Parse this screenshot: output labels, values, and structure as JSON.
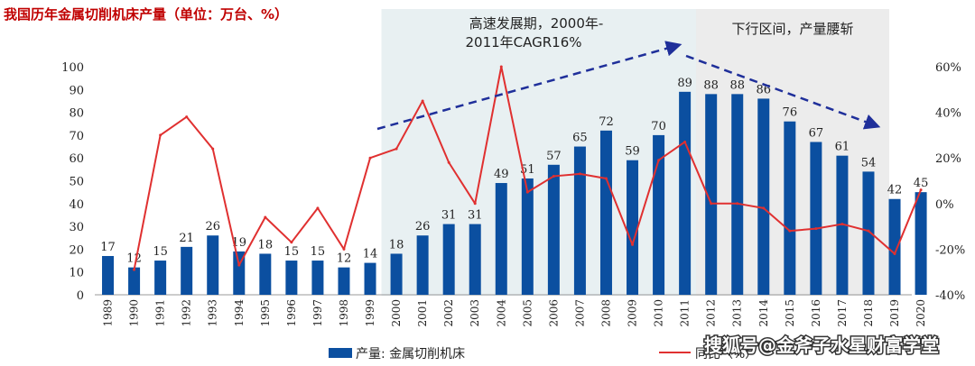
{
  "chart_data": {
    "type": "bar",
    "title": "我国历年金属切削机床产量（单位：万台、%）",
    "categories": [
      "1989",
      "1990",
      "1991",
      "1992",
      "1993",
      "1994",
      "1995",
      "1996",
      "1997",
      "1998",
      "1999",
      "2000",
      "2001",
      "2002",
      "2003",
      "2004",
      "2005",
      "2006",
      "2007",
      "2008",
      "2009",
      "2010",
      "2011",
      "2012",
      "2013",
      "2014",
      "2015",
      "2016",
      "2017",
      "2018",
      "2019",
      "2020"
    ],
    "series": [
      {
        "name": "产量: 金属切削机床",
        "axis": "left",
        "color": "#0b4fa0",
        "values": [
          17,
          12,
          15,
          21,
          26,
          19,
          18,
          15,
          15,
          12,
          14,
          18,
          26,
          31,
          31,
          49,
          51,
          57,
          65,
          72,
          59,
          70,
          89,
          88,
          88,
          86,
          76,
          67,
          61,
          54,
          42,
          45
        ]
      },
      {
        "name": "同比（%）",
        "axis": "right",
        "color": "#e03030",
        "values": [
          null,
          -29,
          30,
          38,
          24,
          -27,
          -6,
          -17,
          -2,
          -20,
          20,
          24,
          45,
          18,
          0,
          60,
          5,
          12,
          13,
          11,
          -18,
          19,
          27,
          0,
          0,
          -2,
          -12,
          -11,
          -9,
          -12,
          -22,
          6
        ]
      }
    ],
    "ylim_left": [
      0,
      100
    ],
    "yticks_left": [
      "0",
      "10",
      "20",
      "30",
      "40",
      "50",
      "60",
      "70",
      "80",
      "90",
      "100"
    ],
    "ylim_right": [
      -40,
      60
    ],
    "yticks_right": [
      "-40%",
      "-20%",
      "0%",
      "20%",
      "40%",
      "60%"
    ],
    "shaded_periods": [
      {
        "from": "2000",
        "to": "2011",
        "label_line1": "高速发展期，2000年-",
        "label_line2": "2011年CAGR16%"
      },
      {
        "from": "2012",
        "to": "2020",
        "label_line1": "下行区间，产量腰斩",
        "label_line2": ""
      }
    ],
    "legend_position": "bottom",
    "watermark": "搜狐号@金斧子水星财富学堂"
  }
}
